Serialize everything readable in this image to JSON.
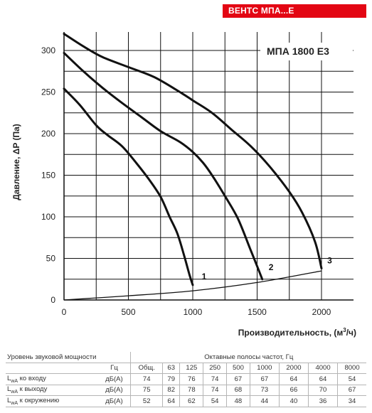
{
  "header": {
    "badge": "ВЕНТС МПА...Е",
    "badge_color": "#e30613"
  },
  "model_label": "МПА 1800 Е3",
  "chart_data": {
    "type": "line",
    "title": "",
    "xlabel": "Производительность, (м³/ч)",
    "xlabel_main": "Производительность, (м",
    "xlabel_sup": "3",
    "xlabel_tail": "/ч)",
    "ylabel": "Давление, ΔP (Па)",
    "xlim": [
      0,
      2250
    ],
    "ylim": [
      0,
      320
    ],
    "x_ticks": [
      0,
      500,
      1000,
      1500,
      2000
    ],
    "y_ticks": [
      0,
      50,
      100,
      150,
      200,
      250,
      300
    ],
    "x_grid": [
      0,
      250,
      500,
      750,
      1000,
      1250,
      1500,
      1750,
      2000
    ],
    "y_grid": [
      0,
      25,
      50,
      75,
      100,
      125,
      150,
      175,
      200,
      225,
      250,
      275,
      300
    ],
    "grid": true,
    "series": [
      {
        "name": "1",
        "x": [
          0,
          120,
          250,
          340,
          450,
          560,
          660,
          750,
          820,
          880,
          930,
          975,
          1000
        ],
        "y": [
          254,
          235,
          210,
          198,
          185,
          165,
          145,
          124,
          100,
          80,
          55,
          30,
          18
        ]
      },
      {
        "name": "2",
        "x": [
          0,
          150,
          300,
          450,
          600,
          750,
          900,
          1000,
          1080,
          1150,
          1250,
          1350,
          1450,
          1540
        ],
        "y": [
          297,
          275,
          255,
          237,
          220,
          203,
          190,
          178,
          165,
          150,
          125,
          98,
          60,
          25
        ]
      },
      {
        "name": "3",
        "x": [
          0,
          150,
          300,
          500,
          700,
          900,
          1000,
          1150,
          1300,
          1450,
          1600,
          1750,
          1850,
          1950,
          2000
        ],
        "y": [
          320,
          305,
          292,
          280,
          268,
          250,
          240,
          225,
          205,
          185,
          160,
          130,
          105,
          70,
          38
        ]
      },
      {
        "name": "system",
        "x": [
          0,
          500,
          1000,
          1500,
          2000
        ],
        "y": [
          0,
          5,
          11,
          21,
          35
        ]
      }
    ],
    "curve_labels": [
      {
        "text": "1",
        "x": 1070,
        "y": 25
      },
      {
        "text": "2",
        "x": 1590,
        "y": 36
      },
      {
        "text": "3",
        "x": 2045,
        "y": 44
      }
    ]
  },
  "sound_table": {
    "title": "Уровень звуковой мощности",
    "bands_title": "Октавные полосы частот, Гц",
    "unit_header": "Гц",
    "columns": [
      "Общ.",
      "63",
      "125",
      "250",
      "500",
      "1000",
      "2000",
      "4000",
      "8000"
    ],
    "rows": [
      {
        "label_main": "L",
        "label_sub": "wA",
        "label_rest": " ко входу",
        "unit": "дБ(А)",
        "values": [
          "74",
          "79",
          "76",
          "74",
          "67",
          "67",
          "64",
          "64",
          "54"
        ]
      },
      {
        "label_main": "L",
        "label_sub": "wA",
        "label_rest": " к выходу",
        "unit": "дБ(А)",
        "values": [
          "75",
          "82",
          "78",
          "74",
          "68",
          "73",
          "66",
          "70",
          "67"
        ]
      },
      {
        "label_main": "L",
        "label_sub": "wA",
        "label_rest": " к окружению",
        "unit": "дБ(А)",
        "values": [
          "52",
          "64",
          "62",
          "54",
          "48",
          "44",
          "40",
          "36",
          "34"
        ]
      }
    ]
  }
}
